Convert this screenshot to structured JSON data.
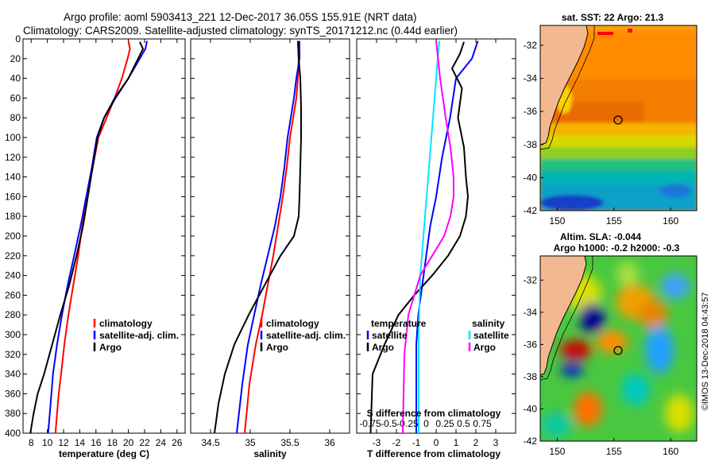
{
  "header": {
    "line1": "Argo profile: aoml 5903413_221 12-Dec-2017 36.05S 155.91E (NRT data)",
    "line2": "Climatology: CARS2009. Satellite-adjusted climatology: synTS_20171212.nc (0.44d earlier)"
  },
  "footer": {
    "credit": "©IMOS 13-Dec-2018 04:43:57"
  },
  "colors": {
    "climatology": "#ff0000",
    "satellite": "#0000ff",
    "argo": "#000000",
    "sat_salinity": "#00e5ff",
    "argo_salinity": "#ff00ff"
  },
  "chart_data": [
    {
      "id": "temperature",
      "type": "line",
      "xlabel": "temperature (deg C)",
      "xlim": [
        7,
        27
      ],
      "ylim": [
        400,
        0
      ],
      "xticks": [
        8,
        10,
        12,
        14,
        16,
        18,
        20,
        22,
        24,
        26
      ],
      "yticks": [
        0,
        20,
        40,
        60,
        80,
        100,
        120,
        140,
        160,
        180,
        200,
        220,
        240,
        260,
        280,
        300,
        320,
        340,
        360,
        380,
        400
      ],
      "legend": [
        "climatology",
        "satellite-adj. clim.",
        "Argo"
      ],
      "series": [
        {
          "name": "climatology",
          "color": "#ff0000",
          "x": [
            20.0,
            20.2,
            19.9,
            19.2,
            18.3,
            17.3,
            16.3,
            15.6,
            14.9,
            14.3,
            13.8,
            13.2,
            12.6,
            12.1,
            11.7,
            11.4,
            11.2,
            11.0
          ],
          "y": [
            2,
            10,
            20,
            40,
            60,
            80,
            100,
            130,
            160,
            190,
            220,
            250,
            280,
            310,
            340,
            360,
            380,
            400
          ]
        },
        {
          "name": "satellite-adj. clim.",
          "color": "#0000ff",
          "x": [
            22.3,
            22.1,
            21.4,
            20.0,
            18.3,
            17.0,
            16.1,
            15.5,
            14.8,
            14.1,
            13.3,
            12.5,
            11.8,
            11.2,
            10.7,
            10.4,
            10.1
          ],
          "y": [
            2,
            10,
            20,
            40,
            60,
            80,
            100,
            130,
            160,
            190,
            220,
            250,
            280,
            310,
            340,
            370,
            400
          ]
        },
        {
          "name": "Argo",
          "color": "#000000",
          "x": [
            21.4,
            21.8,
            21.2,
            20.0,
            18.4,
            17.0,
            16.2,
            15.6,
            15.0,
            14.4,
            13.6,
            12.7,
            11.6,
            10.6,
            9.6,
            8.8,
            8.3,
            7.9
          ],
          "y": [
            3,
            10,
            20,
            40,
            60,
            80,
            100,
            130,
            160,
            190,
            220,
            250,
            280,
            310,
            340,
            360,
            380,
            400
          ]
        }
      ]
    },
    {
      "id": "salinity",
      "type": "line",
      "xlabel": "salinity",
      "xlim": [
        34.25,
        36.25
      ],
      "ylim": [
        400,
        0
      ],
      "xticks": [
        34.5,
        35,
        35.5,
        36
      ],
      "legend": [
        "climatology",
        "satellite-adj. clim.",
        "Argo"
      ],
      "series": [
        {
          "name": "climatology",
          "color": "#ff0000",
          "x": [
            35.6,
            35.61,
            35.6,
            35.58,
            35.54,
            35.5,
            35.46,
            35.41,
            35.35,
            35.29,
            35.22,
            35.15,
            35.07,
            34.99,
            34.93
          ],
          "y": [
            2,
            20,
            40,
            60,
            80,
            100,
            130,
            160,
            190,
            220,
            250,
            280,
            310,
            350,
            400
          ]
        },
        {
          "name": "satellite-adj. clim.",
          "color": "#0000ff",
          "x": [
            35.62,
            35.62,
            35.58,
            35.55,
            35.51,
            35.47,
            35.43,
            35.38,
            35.31,
            35.22,
            35.13,
            35.05,
            34.97,
            34.9,
            34.83
          ],
          "y": [
            2,
            20,
            40,
            60,
            80,
            100,
            130,
            160,
            190,
            220,
            250,
            280,
            310,
            350,
            400
          ]
        },
        {
          "name": "Argo",
          "color": "#000000",
          "x": [
            35.6,
            35.61,
            35.63,
            35.64,
            35.64,
            35.63,
            35.62,
            35.61,
            35.55,
            35.38,
            35.18,
            34.98,
            34.8,
            34.68,
            34.6,
            34.55
          ],
          "y": [
            2,
            20,
            40,
            70,
            100,
            130,
            160,
            180,
            200,
            220,
            250,
            280,
            310,
            340,
            370,
            400
          ]
        }
      ]
    },
    {
      "id": "difference",
      "type": "line",
      "xlabel": "T difference from climatology",
      "xlim": [
        -4,
        4
      ],
      "ylim": [
        400,
        0
      ],
      "xticks": [
        -3,
        -2,
        -1,
        0,
        1,
        2,
        3
      ],
      "s_tick_labels": [
        "-0.75",
        "-0.5",
        "-0.25",
        "0",
        "0.25",
        "0.5",
        "0.75"
      ],
      "s_axis_label": "S difference from climatology",
      "legend_temperature_title": "temperature",
      "legend_salinity_title": "salinity",
      "legend_temperature": [
        "satellite",
        "Argo"
      ],
      "legend_salinity": [
        "satellite",
        "Argo"
      ],
      "series": [
        {
          "name": "T satellite",
          "color": "#0000ff",
          "x": [
            2.1,
            1.8,
            1.0,
            0.7,
            0.3,
            0.0,
            -0.3,
            -0.5,
            -0.7,
            -0.9,
            -1.0,
            -1.0,
            -1.0,
            -1.0
          ],
          "y": [
            2,
            20,
            40,
            80,
            120,
            160,
            190,
            220,
            250,
            280,
            310,
            340,
            370,
            400
          ]
        },
        {
          "name": "T Argo",
          "color": "#000000",
          "x": [
            1.4,
            1.2,
            0.8,
            1.3,
            1.1,
            1.4,
            1.5,
            1.6,
            1.5,
            1.2,
            0.6,
            -0.2,
            -1.1,
            -1.9,
            -2.6,
            -3.2,
            -3.3
          ],
          "y": [
            3,
            15,
            30,
            50,
            80,
            110,
            140,
            160,
            180,
            200,
            220,
            240,
            260,
            280,
            310,
            340,
            400
          ]
        },
        {
          "name": "S satellite",
          "color": "#00e5ff",
          "x": [
            0.04,
            0.0,
            -0.04,
            -0.08,
            -0.12,
            -0.16,
            -0.2,
            -0.22,
            -0.22
          ],
          "y": [
            2,
            40,
            80,
            120,
            160,
            200,
            240,
            300,
            400
          ]
        },
        {
          "name": "S Argo",
          "color": "#ff00ff",
          "x": [
            0.0,
            0.05,
            0.12,
            0.18,
            0.22,
            0.22,
            0.18,
            0.1,
            -0.05,
            -0.2,
            -0.35,
            -0.4,
            -0.42
          ],
          "y": [
            2,
            40,
            80,
            110,
            140,
            160,
            180,
            200,
            220,
            240,
            280,
            320,
            400
          ]
        }
      ]
    },
    {
      "id": "sst-map",
      "type": "heatmap",
      "title": "sat. SST: 22 Argo: 21.3",
      "xticks": [
        150,
        155,
        160
      ],
      "yticks": [
        -32,
        -34,
        -36,
        -38,
        -40,
        -42
      ],
      "xlim": [
        148.5,
        162.3
      ],
      "ylim": [
        -42,
        -30.8
      ],
      "argo_position": {
        "lon": 155.91,
        "lat": -36.05
      },
      "coast": [
        [
          152.5,
          -30.8
        ],
        [
          153.0,
          -31.5
        ],
        [
          152.6,
          -32.5
        ],
        [
          151.6,
          -33.6
        ],
        [
          151.0,
          -34.5
        ],
        [
          150.6,
          -35.4
        ],
        [
          150.0,
          -36.5
        ],
        [
          149.9,
          -37.5
        ],
        [
          149.4,
          -37.9
        ],
        [
          148.5,
          -38.0
        ]
      ]
    },
    {
      "id": "sla-map",
      "type": "heatmap",
      "title1": "Altim. SLA: -0.044",
      "title2": "Argo h1000: -0.2 h2000: -0.3",
      "xticks": [
        150,
        155,
        160
      ],
      "yticks": [
        -32,
        -34,
        -36,
        -38,
        -40,
        -42
      ],
      "xlim": [
        148.5,
        162.3
      ],
      "ylim": [
        -42,
        -30.5
      ],
      "argo_position": {
        "lon": 155.91,
        "lat": -36.05
      },
      "coast": [
        [
          152.5,
          -30.5
        ],
        [
          153.0,
          -31.5
        ],
        [
          152.6,
          -32.5
        ],
        [
          151.6,
          -33.6
        ],
        [
          151.0,
          -34.5
        ],
        [
          150.6,
          -35.4
        ],
        [
          150.0,
          -36.5
        ],
        [
          149.9,
          -37.5
        ],
        [
          149.4,
          -37.9
        ],
        [
          148.5,
          -38.0
        ]
      ]
    }
  ]
}
